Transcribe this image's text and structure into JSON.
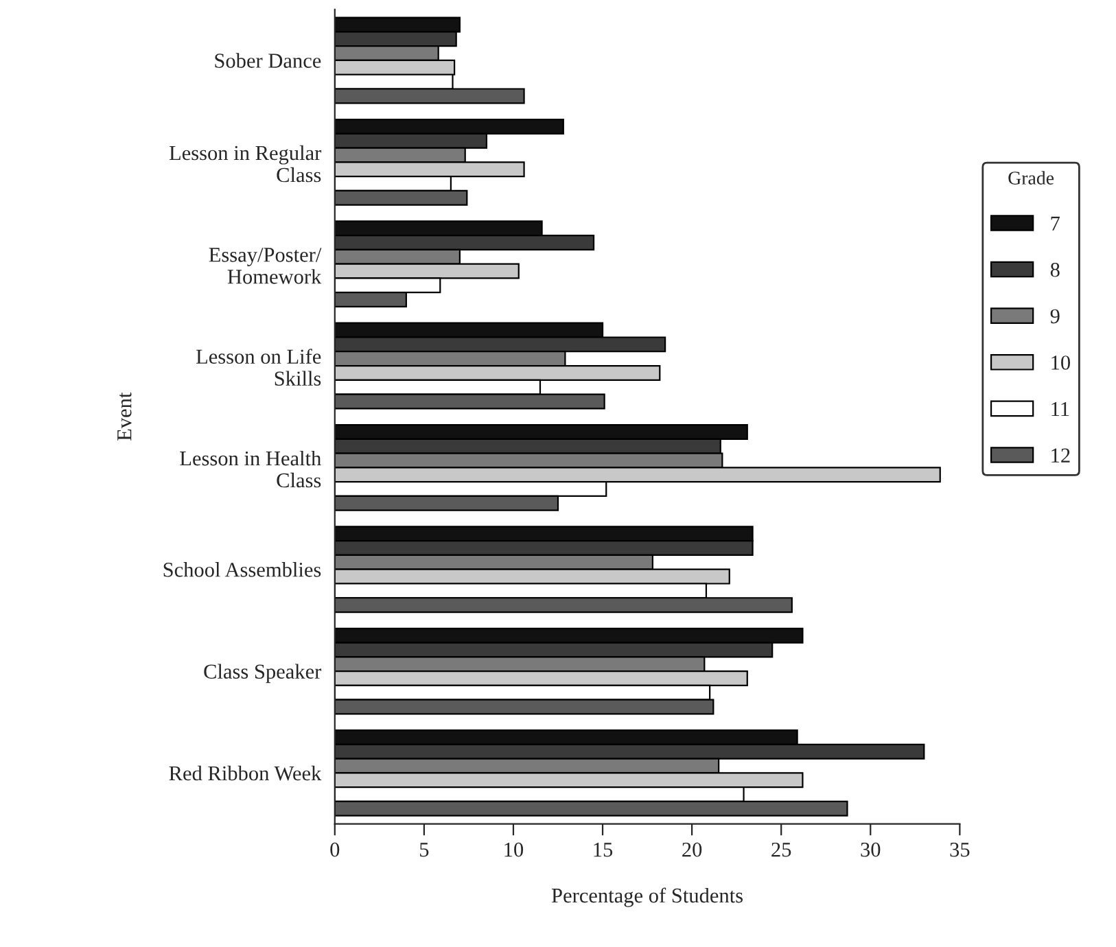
{
  "chart_data": {
    "type": "bar",
    "orientation": "horizontal",
    "xlabel": "Percentage of Students",
    "ylabel": "Event",
    "legend_title": "Grade",
    "legend": "right",
    "categories": [
      "Sober Dance",
      "Lesson in Regular\nClass",
      "Essay/Poster/\nHomework",
      "Lesson on Life\nSkills",
      "Lesson in Health\nClass",
      "School Assemblies",
      "Class Speaker",
      "Red Ribbon Week"
    ],
    "xlim": [
      0,
      35
    ],
    "xticks": [
      0,
      5,
      10,
      15,
      20,
      25,
      30,
      35
    ],
    "grid": false,
    "series": [
      {
        "name": "7",
        "color": "#111111",
        "values": [
          7.0,
          12.8,
          11.6,
          15.0,
          23.1,
          23.4,
          26.2,
          25.9
        ]
      },
      {
        "name": "8",
        "color": "#3a3a3a",
        "values": [
          6.8,
          8.5,
          14.5,
          18.5,
          21.6,
          23.4,
          24.5,
          33.0
        ]
      },
      {
        "name": "9",
        "color": "#7a7a7a",
        "values": [
          5.8,
          7.3,
          7.0,
          12.9,
          21.7,
          17.8,
          20.7,
          21.5
        ]
      },
      {
        "name": "10",
        "color": "#c8c8c8",
        "values": [
          6.7,
          10.6,
          10.3,
          18.2,
          33.9,
          22.1,
          23.1,
          26.2
        ]
      },
      {
        "name": "11",
        "color": "#ffffff",
        "values": [
          6.6,
          6.5,
          5.9,
          11.5,
          15.2,
          20.8,
          21.0,
          22.9
        ]
      },
      {
        "name": "12",
        "color": "#5a5a5a",
        "values": [
          10.6,
          7.4,
          4.0,
          15.1,
          12.5,
          25.6,
          21.2,
          28.7
        ]
      }
    ]
  }
}
